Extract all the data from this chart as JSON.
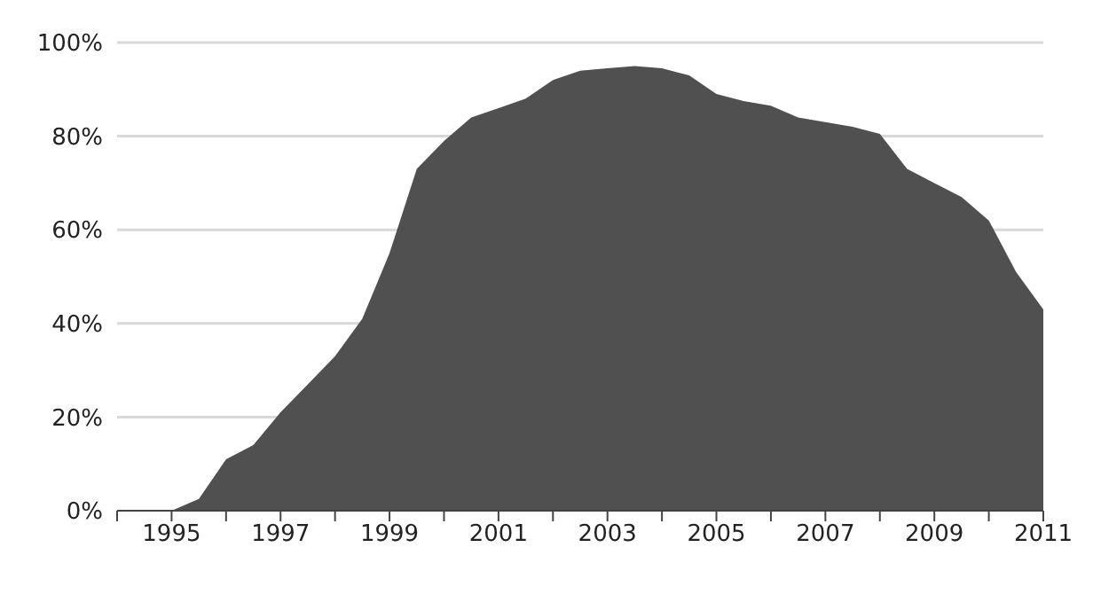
{
  "chart_data": {
    "type": "area",
    "x": [
      1994,
      1995,
      1995.5,
      1996,
      1996.5,
      1997,
      1997.5,
      1998,
      1998.5,
      1999,
      1999.5,
      2000,
      2000.5,
      2001,
      2001.5,
      2002,
      2002.5,
      2003,
      2003.5,
      2004,
      2004.5,
      2005,
      2005.5,
      2006,
      2006.5,
      2007,
      2007.5,
      2008,
      2008.5,
      2009,
      2009.5,
      2010,
      2010.5,
      2011
    ],
    "series": [
      {
        "color": "#505050",
        "values": [
          0,
          0,
          2.5,
          11,
          14,
          21,
          27,
          33,
          41,
          55,
          73,
          79,
          84,
          86,
          88,
          92,
          94,
          94.5,
          95,
          94.5,
          93,
          89,
          87.5,
          86.5,
          84,
          83,
          82,
          80.5,
          73,
          70,
          67,
          62,
          51,
          43
        ]
      }
    ],
    "xlim": [
      1994,
      2011
    ],
    "xticks": [
      {
        "value": 1994,
        "label": null
      },
      1995,
      {
        "value": 1996,
        "label": null
      },
      1997,
      {
        "value": 1998,
        "label": null
      },
      1999,
      {
        "value": 2000,
        "label": null
      },
      2001,
      {
        "value": 2002,
        "label": null
      },
      2003,
      {
        "value": 2004,
        "label": null
      },
      2005,
      {
        "value": 2006,
        "label": null
      },
      2007,
      {
        "value": 2008,
        "label": null
      },
      2009,
      {
        "value": 2010,
        "label": null
      },
      2011
    ],
    "ylim": [
      0,
      100
    ],
    "yticks": [
      {
        "value": 0,
        "label": "0%"
      },
      {
        "value": 20,
        "label": "20%"
      },
      {
        "value": 40,
        "label": "40%"
      },
      {
        "value": 60,
        "label": "60%"
      },
      {
        "value": 80,
        "label": "80%"
      },
      {
        "value": 100,
        "label": "100%"
      }
    ],
    "grid": "y"
  }
}
